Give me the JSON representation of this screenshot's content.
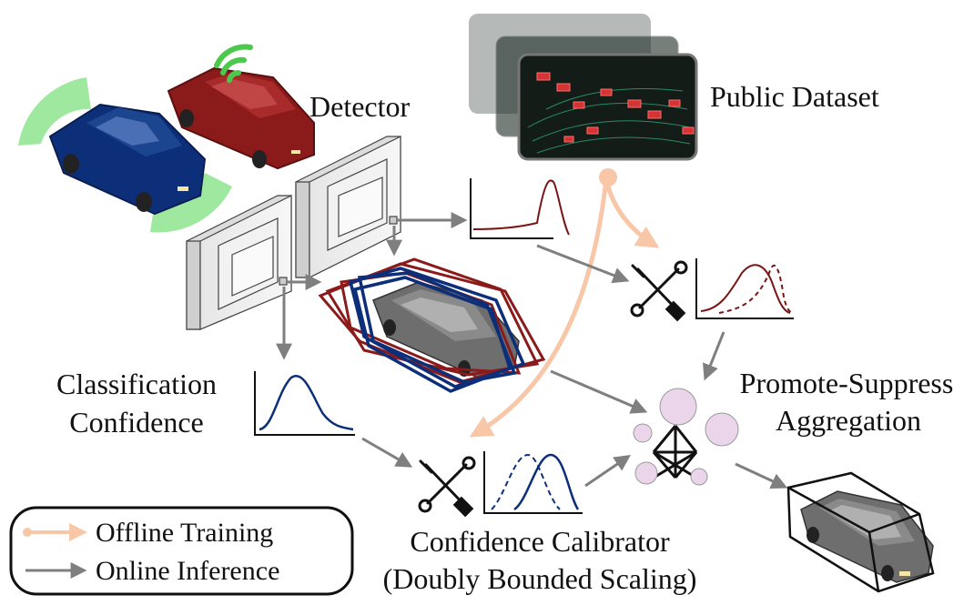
{
  "labels": {
    "detector": "Detector",
    "public_dataset": "Public Dataset",
    "classification_confidence_line1": "Classification",
    "classification_confidence_line2": "Confidence",
    "promote_suppress_line1": "Promote-Suppress",
    "promote_suppress_line2": "Aggregation",
    "calibrator_line1": "Confidence Calibrator",
    "calibrator_line2": "(Doubly Bounded Scaling)"
  },
  "legend": {
    "offline": "Offline Training",
    "online": "Online Inference"
  },
  "colors": {
    "offline_arrow": "#f8c7a8",
    "online_arrow": "#7f7f7f",
    "dark_red": "#8b1a1a",
    "navy": "#0d2f7a",
    "signal_green": "#6ee06e",
    "node_fill": "#ead5ea"
  },
  "icons": [
    "car-sensor-icon",
    "car-v2x-icon",
    "wrench-screwdriver-icon",
    "graph-network-icon"
  ]
}
